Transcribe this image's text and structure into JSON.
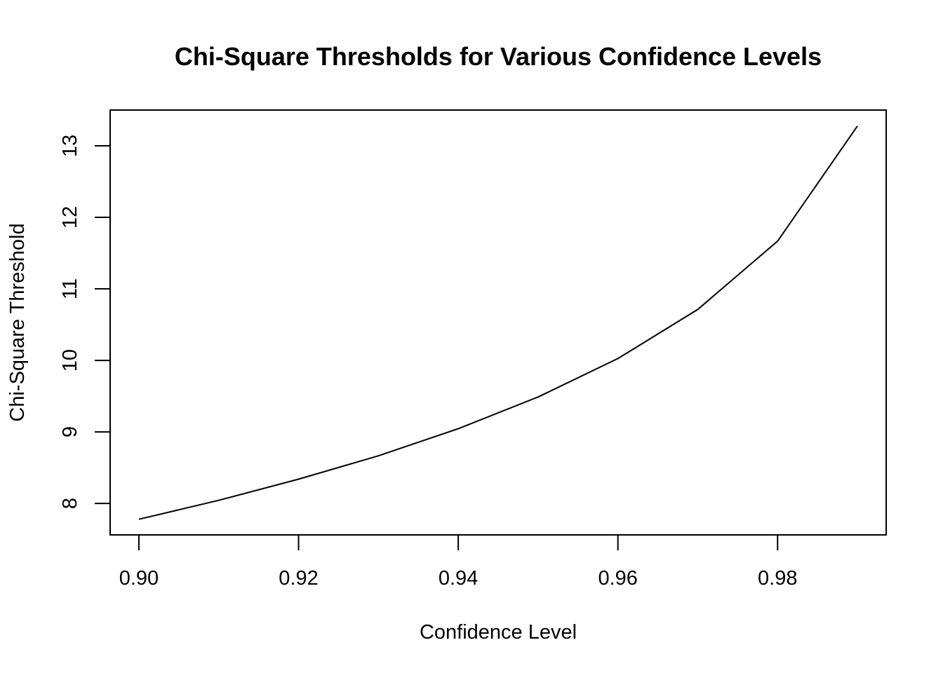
{
  "chart_data": {
    "type": "line",
    "title": "Chi-Square Thresholds for Various Confidence Levels",
    "xlabel": "Confidence Level",
    "ylabel": "Chi-Square Threshold",
    "x": [
      0.9,
      0.91,
      0.92,
      0.93,
      0.94,
      0.95,
      0.96,
      0.97,
      0.98,
      0.99
    ],
    "series": [
      {
        "values": [
          7.779,
          8.043,
          8.339,
          8.666,
          9.045,
          9.488,
          10.026,
          10.712,
          11.668,
          13.277
        ]
      }
    ],
    "xlim": [
      0.8964,
      0.9936
    ],
    "ylim": [
      7.56,
      13.5
    ],
    "x_ticks": [
      0.9,
      0.92,
      0.94,
      0.96,
      0.98
    ],
    "x_tick_labels": [
      "0.90",
      "0.92",
      "0.94",
      "0.96",
      "0.98"
    ],
    "y_ticks": [
      8,
      9,
      10,
      11,
      12,
      13
    ],
    "y_tick_labels": [
      "8",
      "9",
      "10",
      "11",
      "12",
      "13"
    ],
    "grid": false,
    "line_color": "#000000"
  }
}
